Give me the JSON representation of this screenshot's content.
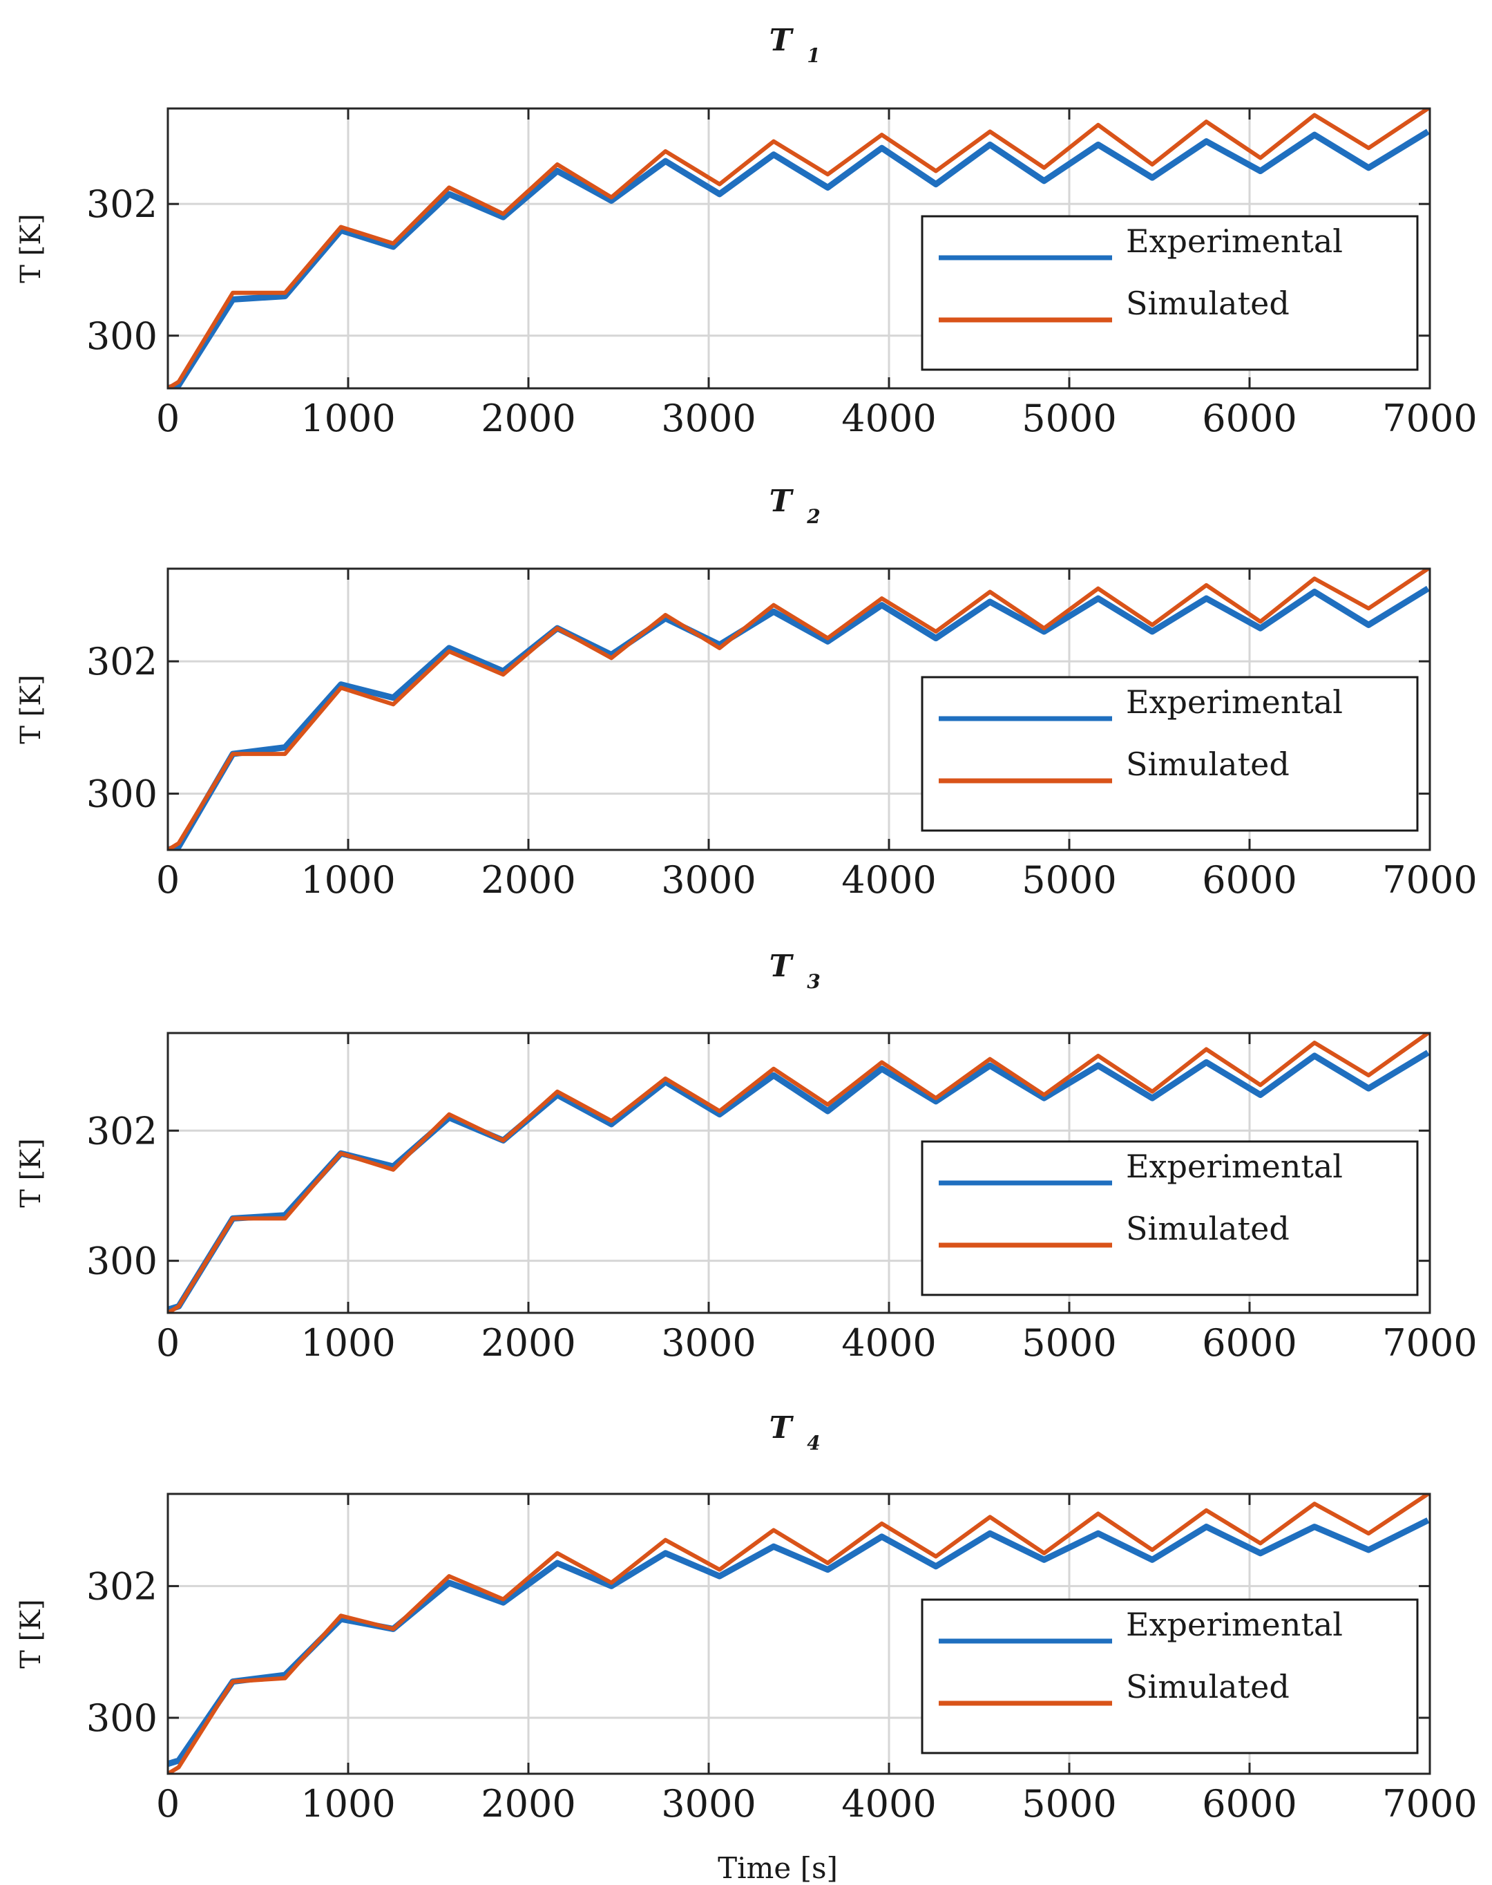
{
  "figure": {
    "xlabel": "Time [s]",
    "ylabel": "T [K]"
  },
  "colors": {
    "experimental": "#1f6fbf",
    "simulated": "#d95319",
    "grid": "#d6d6d6",
    "axis": "#262626"
  },
  "chart_data": [
    {
      "type": "line",
      "title": "T",
      "subscript": "1",
      "xlabel": "",
      "ylabel": "T [K]",
      "xlim": [
        0,
        7000
      ],
      "ylim": [
        299.2,
        303.45
      ],
      "xticks": [
        "0",
        "1000",
        "2000",
        "3000",
        "4000",
        "5000",
        "6000",
        "7000"
      ],
      "yticks": [
        "300",
        "302"
      ],
      "legend": [
        "Experimental",
        "Simulated"
      ],
      "series": [
        {
          "name": "Experimental",
          "x": [
            0,
            60,
            360,
            650,
            960,
            1250,
            1560,
            1860,
            2160,
            2460,
            2760,
            3060,
            3360,
            3660,
            3960,
            4260,
            4560,
            4860,
            5160,
            5460,
            5760,
            6060,
            6360,
            6660,
            6990
          ],
          "y": [
            299.2,
            299.25,
            300.55,
            300.6,
            301.6,
            301.35,
            302.15,
            301.8,
            302.5,
            302.05,
            302.65,
            302.15,
            302.75,
            302.25,
            302.85,
            302.3,
            302.9,
            302.35,
            302.9,
            302.4,
            302.95,
            302.5,
            303.05,
            302.55,
            303.1
          ]
        },
        {
          "name": "Simulated",
          "x": [
            0,
            60,
            360,
            650,
            960,
            1250,
            1560,
            1860,
            2160,
            2460,
            2760,
            3060,
            3360,
            3660,
            3960,
            4260,
            4560,
            4860,
            5160,
            5460,
            5760,
            6060,
            6360,
            6660,
            6990
          ],
          "y": [
            299.2,
            299.3,
            300.65,
            300.65,
            301.65,
            301.4,
            302.25,
            301.85,
            302.6,
            302.1,
            302.8,
            302.3,
            302.95,
            302.45,
            303.05,
            302.5,
            303.1,
            302.55,
            303.2,
            302.6,
            303.25,
            302.7,
            303.35,
            302.85,
            303.45
          ]
        }
      ]
    },
    {
      "type": "line",
      "title": "T",
      "subscript": "2",
      "xlabel": "",
      "ylabel": "T [K]",
      "xlim": [
        0,
        7000
      ],
      "ylim": [
        299.15,
        303.4
      ],
      "xticks": [
        "0",
        "1000",
        "2000",
        "3000",
        "4000",
        "5000",
        "6000",
        "7000"
      ],
      "yticks": [
        "300",
        "302"
      ],
      "legend": [
        "Experimental",
        "Simulated"
      ],
      "series": [
        {
          "name": "Experimental",
          "x": [
            0,
            60,
            360,
            650,
            960,
            1250,
            1560,
            1860,
            2160,
            2460,
            2760,
            3060,
            3360,
            3660,
            3960,
            4260,
            4560,
            4860,
            5160,
            5460,
            5760,
            6060,
            6360,
            6660,
            6990
          ],
          "y": [
            299.15,
            299.2,
            300.6,
            300.7,
            301.65,
            301.45,
            302.2,
            301.85,
            302.5,
            302.1,
            302.65,
            302.25,
            302.75,
            302.3,
            302.85,
            302.35,
            302.9,
            302.45,
            302.95,
            302.45,
            302.95,
            302.5,
            303.05,
            302.55,
            303.1
          ]
        },
        {
          "name": "Simulated",
          "x": [
            0,
            60,
            360,
            650,
            960,
            1250,
            1560,
            1860,
            2160,
            2460,
            2760,
            3060,
            3360,
            3660,
            3960,
            4260,
            4560,
            4860,
            5160,
            5460,
            5760,
            6060,
            6360,
            6660,
            6990
          ],
          "y": [
            299.15,
            299.25,
            300.6,
            300.6,
            301.6,
            301.35,
            302.15,
            301.8,
            302.5,
            302.05,
            302.7,
            302.2,
            302.85,
            302.35,
            302.95,
            302.45,
            303.05,
            302.5,
            303.1,
            302.55,
            303.15,
            302.6,
            303.25,
            302.8,
            303.4
          ]
        }
      ]
    },
    {
      "type": "line",
      "title": "T",
      "subscript": "3",
      "xlabel": "",
      "ylabel": "T [K]",
      "xlim": [
        0,
        7000
      ],
      "ylim": [
        299.2,
        303.5
      ],
      "xticks": [
        "0",
        "1000",
        "2000",
        "3000",
        "4000",
        "5000",
        "6000",
        "7000"
      ],
      "yticks": [
        "300",
        "302"
      ],
      "legend": [
        "Experimental",
        "Simulated"
      ],
      "series": [
        {
          "name": "Experimental",
          "x": [
            0,
            60,
            360,
            650,
            960,
            1250,
            1560,
            1860,
            2160,
            2460,
            2760,
            3060,
            3360,
            3660,
            3960,
            4260,
            4560,
            4860,
            5160,
            5460,
            5760,
            6060,
            6360,
            6660,
            6990
          ],
          "y": [
            299.25,
            299.3,
            300.65,
            300.7,
            301.65,
            301.45,
            302.2,
            301.85,
            302.55,
            302.1,
            302.75,
            302.25,
            302.85,
            302.3,
            302.95,
            302.45,
            303.0,
            302.5,
            303.0,
            302.5,
            303.05,
            302.55,
            303.15,
            302.65,
            303.2
          ]
        },
        {
          "name": "Simulated",
          "x": [
            0,
            60,
            360,
            650,
            960,
            1250,
            1560,
            1860,
            2160,
            2460,
            2760,
            3060,
            3360,
            3660,
            3960,
            4260,
            4560,
            4860,
            5160,
            5460,
            5760,
            6060,
            6360,
            6660,
            6990
          ],
          "y": [
            299.2,
            299.3,
            300.65,
            300.65,
            301.65,
            301.4,
            302.25,
            301.85,
            302.6,
            302.15,
            302.8,
            302.3,
            302.95,
            302.4,
            303.05,
            302.5,
            303.1,
            302.55,
            303.15,
            302.6,
            303.25,
            302.7,
            303.35,
            302.85,
            303.5
          ]
        }
      ]
    },
    {
      "type": "line",
      "title": "T",
      "subscript": "4",
      "xlabel": "Time [s]",
      "ylabel": "T [K]",
      "xlim": [
        0,
        7000
      ],
      "ylim": [
        299.15,
        303.4
      ],
      "xticks": [
        "0",
        "1000",
        "2000",
        "3000",
        "4000",
        "5000",
        "6000",
        "7000"
      ],
      "yticks": [
        "300",
        "302"
      ],
      "legend": [
        "Experimental",
        "Simulated"
      ],
      "series": [
        {
          "name": "Experimental",
          "x": [
            0,
            60,
            360,
            650,
            960,
            1250,
            1560,
            1860,
            2160,
            2460,
            2760,
            3060,
            3360,
            3660,
            3960,
            4260,
            4560,
            4860,
            5160,
            5460,
            5760,
            6060,
            6360,
            6660,
            6990
          ],
          "y": [
            299.3,
            299.35,
            300.55,
            300.65,
            301.5,
            301.35,
            302.05,
            301.75,
            302.35,
            302.0,
            302.5,
            302.15,
            302.6,
            302.25,
            302.75,
            302.3,
            302.8,
            302.4,
            302.8,
            302.4,
            302.9,
            302.5,
            302.9,
            302.55,
            303.0
          ]
        },
        {
          "name": "Simulated",
          "x": [
            0,
            60,
            360,
            650,
            960,
            1250,
            1560,
            1860,
            2160,
            2460,
            2760,
            3060,
            3360,
            3660,
            3960,
            4260,
            4560,
            4860,
            5160,
            5460,
            5760,
            6060,
            6360,
            6660,
            6990
          ],
          "y": [
            299.15,
            299.25,
            300.55,
            300.6,
            301.55,
            301.35,
            302.15,
            301.8,
            302.5,
            302.05,
            302.7,
            302.25,
            302.85,
            302.35,
            302.95,
            302.45,
            303.05,
            302.5,
            303.1,
            302.55,
            303.15,
            302.65,
            303.25,
            302.8,
            303.4
          ]
        }
      ]
    }
  ]
}
